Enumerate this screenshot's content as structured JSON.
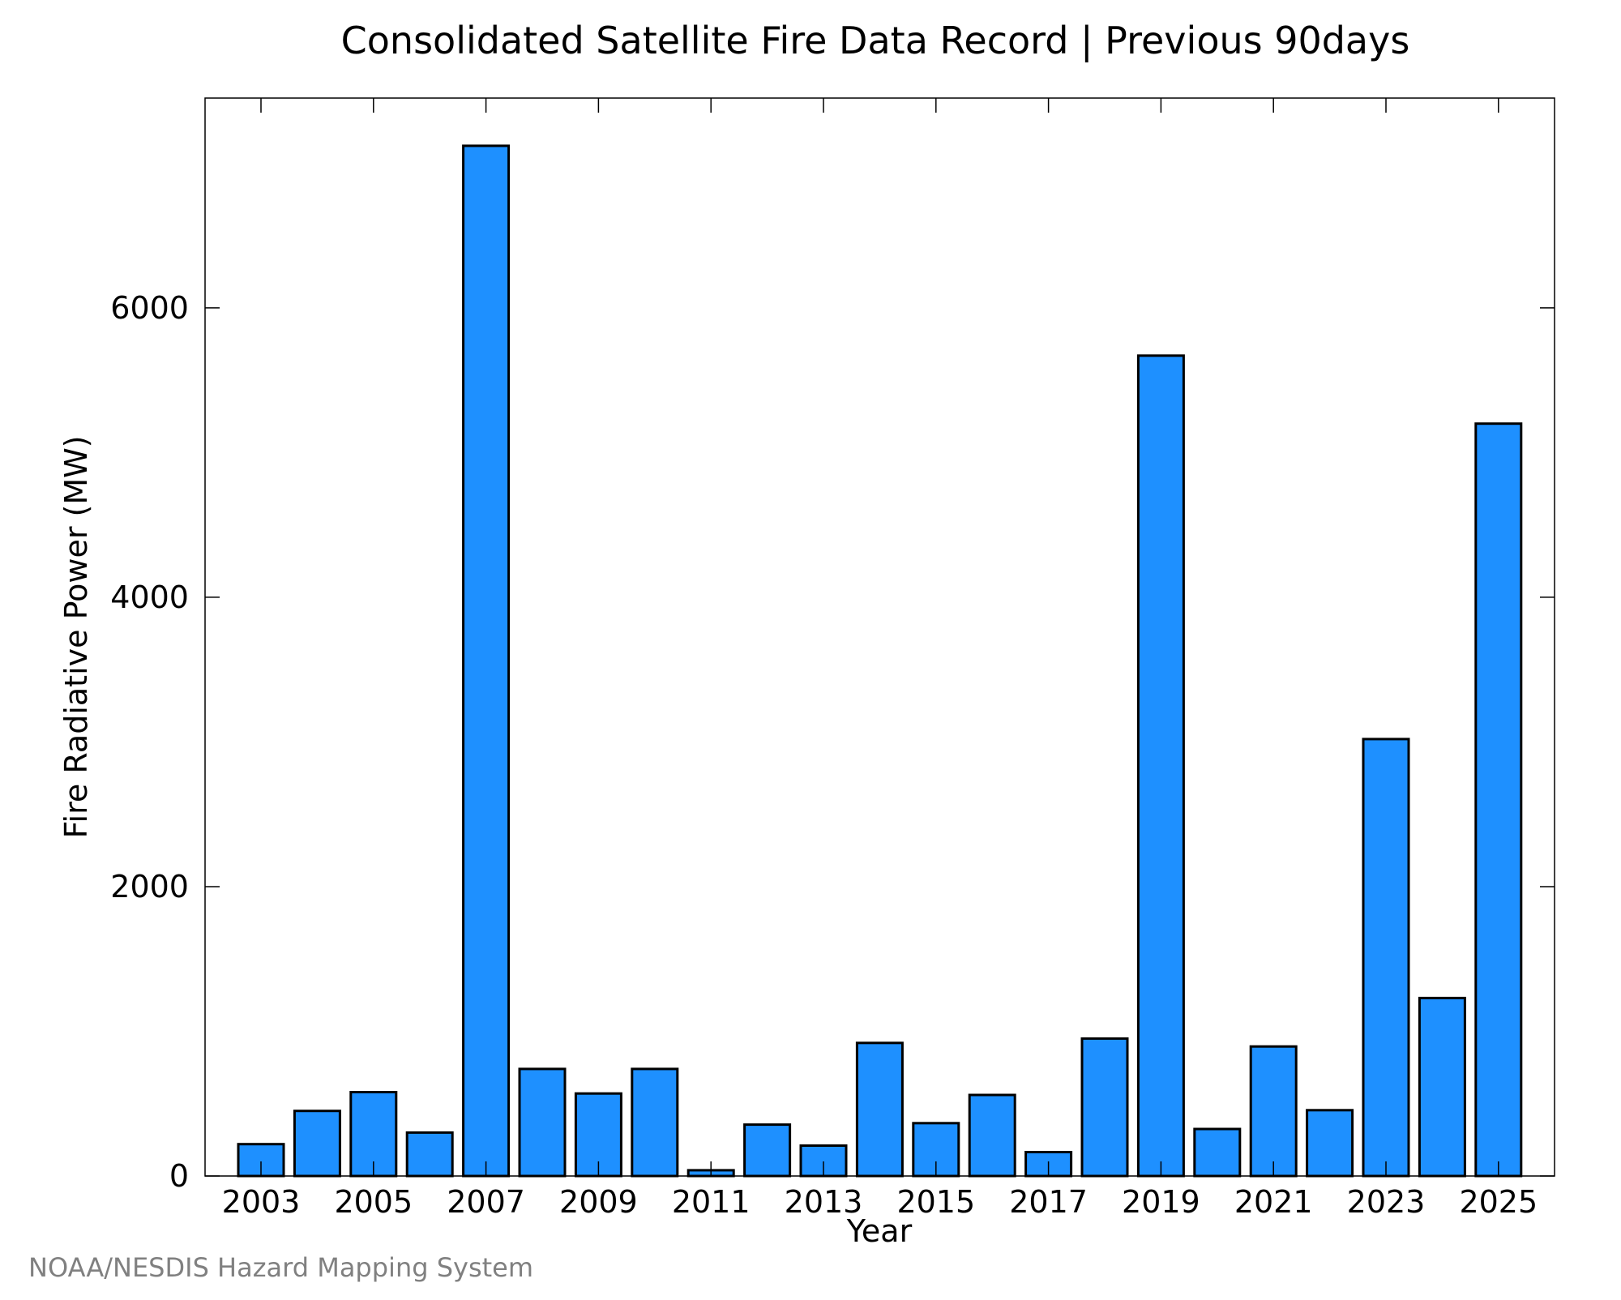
{
  "chart_data": {
    "type": "bar",
    "title": "Consolidated Satellite Fire Data Record | Previous 90days",
    "xlabel": "Year",
    "ylabel": "Fire Radiative Power (MW)",
    "categories": [
      "2003",
      "2004",
      "2005",
      "2006",
      "2007",
      "2008",
      "2009",
      "2010",
      "2011",
      "2012",
      "2013",
      "2014",
      "2015",
      "2016",
      "2017",
      "2018",
      "2019",
      "2020",
      "2021",
      "2022",
      "2023",
      "2024",
      "2025"
    ],
    "values": [
      220,
      450,
      580,
      300,
      7120,
      740,
      570,
      740,
      40,
      355,
      210,
      920,
      365,
      560,
      165,
      950,
      5670,
      325,
      895,
      455,
      3020,
      1230,
      5200
    ],
    "ylim": [
      0,
      7450
    ],
    "yticks": [
      0,
      2000,
      4000,
      6000
    ],
    "yticks_labels": [
      "0",
      "2000",
      "4000",
      "6000"
    ],
    "xticks_labels": [
      "2003",
      "2005",
      "2007",
      "2009",
      "2011",
      "2013",
      "2015",
      "2017",
      "2019",
      "2021",
      "2023",
      "2025"
    ],
    "bar_color": "#1e90ff",
    "bar_edge_color": "#000000",
    "grid": false,
    "legend": "none"
  },
  "footer": {
    "credit": "NOAA/NESDIS Hazard Mapping System"
  }
}
